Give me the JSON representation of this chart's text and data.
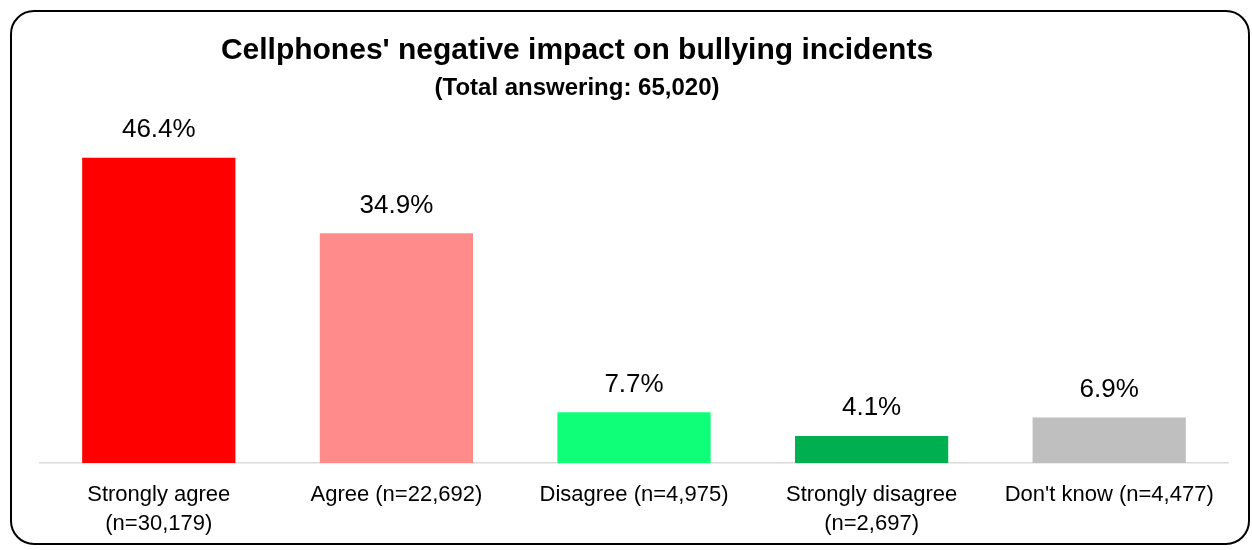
{
  "chart_data": {
    "type": "bar",
    "title": "Cellphones' negative impact on bullying incidents",
    "subtitle": "(Total answering: 65,020)",
    "categories": [
      "Strongly agree\n(n=30,179)",
      "Agree (n=22,692)",
      "Disagree (n=4,975)",
      "Strongly disagree\n(n=2,697)",
      "Don't know (n=4,477)"
    ],
    "values": [
      46.4,
      34.9,
      7.7,
      4.1,
      6.9
    ],
    "colors": [
      "#ff0000",
      "#ff8b8b",
      "#0fff78",
      "#00b050",
      "#bfbfbf"
    ],
    "value_labels": [
      "46.4%",
      "34.9%",
      "7.7%",
      "4.1%",
      "6.9%"
    ]
  }
}
